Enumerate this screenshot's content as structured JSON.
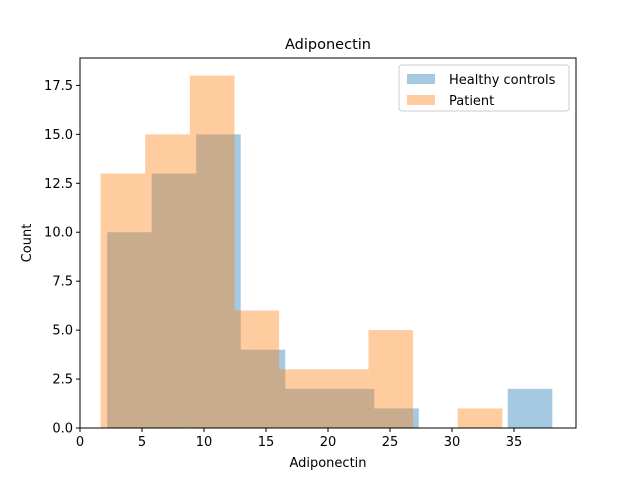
{
  "chart_data": {
    "type": "bar",
    "title": "Adiponectin",
    "xlabel": "Adiponectin",
    "ylabel": "Count",
    "xlim": [
      0,
      40
    ],
    "ylim": [
      0,
      18.9
    ],
    "xticks": [
      0,
      5,
      10,
      15,
      20,
      25,
      30,
      35
    ],
    "yticks": [
      0.0,
      2.5,
      5.0,
      7.5,
      10.0,
      12.5,
      15.0,
      17.5
    ],
    "legend_position": "top-right",
    "grid": false,
    "series": [
      {
        "name": "Healthy controls",
        "color": "#1f77b4",
        "alpha": 0.4,
        "bin_edges": [
          2.19,
          5.78,
          9.37,
          12.96,
          16.55,
          20.14,
          23.73,
          27.32,
          30.91,
          34.5,
          38.09
        ],
        "counts": [
          10,
          13,
          15,
          4,
          2,
          2,
          1,
          0,
          0,
          2
        ]
      },
      {
        "name": "Patient",
        "color": "#ff7f0e",
        "alpha": 0.4,
        "bin_edges": [
          1.66,
          5.26,
          8.86,
          12.46,
          16.06,
          19.66,
          23.26,
          26.86,
          30.46,
          34.06,
          37.66
        ],
        "counts": [
          13,
          15,
          18,
          6,
          3,
          3,
          5,
          0,
          1,
          0
        ]
      }
    ]
  }
}
